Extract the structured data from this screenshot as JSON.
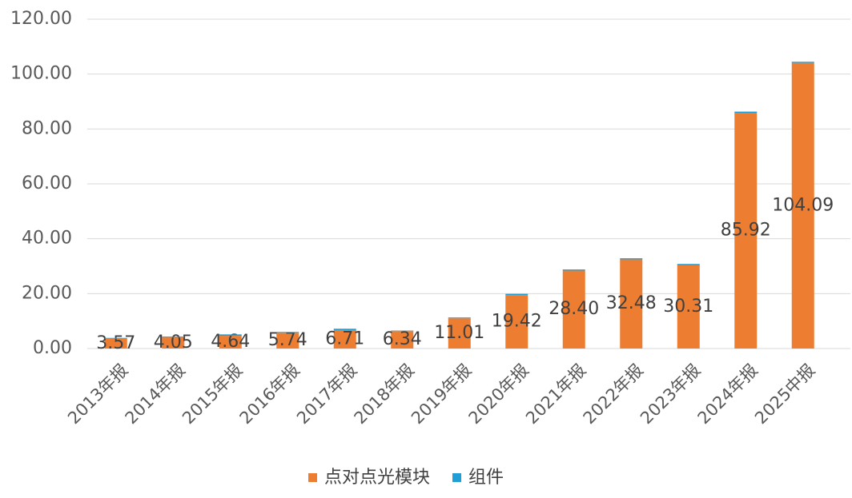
{
  "chart_data": {
    "type": "bar",
    "stacked": true,
    "categories": [
      "2013年报",
      "2014年报",
      "2015年报",
      "2016年报",
      "2017年报",
      "2018年报",
      "2019年报",
      "2020年报",
      "2021年报",
      "2022年报",
      "2023年报",
      "2024年报",
      "2025中报"
    ],
    "series": [
      {
        "name": "点对点光模块",
        "color": "#ed7d31",
        "values": [
          3.57,
          4.05,
          4.64,
          5.74,
          6.71,
          6.34,
          11.01,
          19.42,
          28.4,
          32.48,
          30.31,
          85.92,
          104.09
        ],
        "value_labels": [
          "3.57",
          "4.05",
          "4.64",
          "5.74",
          "6.71",
          "6.34",
          "11.01",
          "19.42",
          "28.40",
          "32.48",
          "30.31",
          "85.92",
          "104.09"
        ]
      },
      {
        "name": "组件",
        "color": "#1f9fd6",
        "values": [
          0.3,
          0.3,
          0.5,
          0.3,
          0.5,
          0.2,
          0.3,
          0.5,
          0.4,
          0.4,
          0.5,
          0.4,
          0.4
        ]
      }
    ],
    "ylim": [
      0,
      120
    ],
    "yticks": [
      {
        "value": 0,
        "label": "0.00"
      },
      {
        "value": 20,
        "label": "20.00"
      },
      {
        "value": 40,
        "label": "40.00"
      },
      {
        "value": 60,
        "label": "60.00"
      },
      {
        "value": 80,
        "label": "80.00"
      },
      {
        "value": 100,
        "label": "100.00"
      },
      {
        "value": 120,
        "label": "120.00"
      }
    ],
    "grid": true,
    "legend": "bottom"
  }
}
